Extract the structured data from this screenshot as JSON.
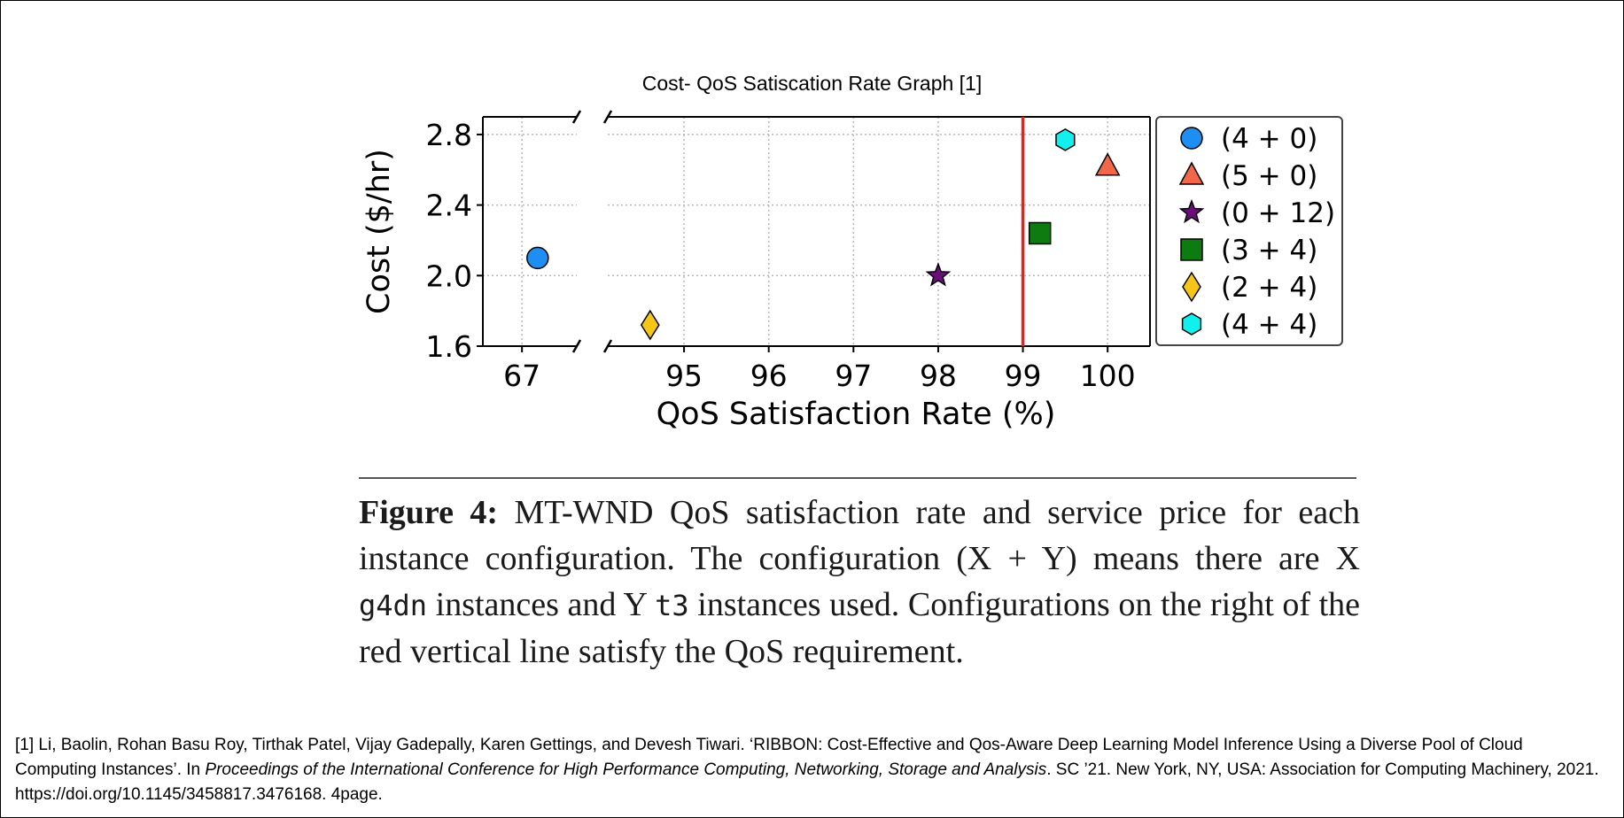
{
  "chart_data": {
    "type": "scatter",
    "title": "Cost- QoS Satiscation Rate Graph [1]",
    "xlabel": "QoS Satisfaction Rate (%)",
    "ylabel": "Cost ($/hr)",
    "x_axis_broken": true,
    "x_ticks_left_segment": [
      "67"
    ],
    "x_ticks_right_segment": [
      "95",
      "96",
      "97",
      "98",
      "99",
      "100"
    ],
    "y_ticks": [
      "1.6",
      "2.0",
      "2.4",
      "2.8"
    ],
    "xlim_left_segment": [
      66.5,
      67.7
    ],
    "xlim_right_segment": [
      94.1,
      100.5
    ],
    "ylim": [
      1.6,
      2.9
    ],
    "grid": true,
    "grid_style": "dotted",
    "reference_line": {
      "orientation": "vertical",
      "x": 99,
      "color": "#e8221b"
    },
    "legend_position": "right, outside plot",
    "series": [
      {
        "name": "(4 + 0)",
        "marker": "circle",
        "color": "#1f8ef2",
        "x": 67.2,
        "y": 2.1
      },
      {
        "name": "(5 + 0)",
        "marker": "triangle",
        "color": "#f26649",
        "x": 100.0,
        "y": 2.62
      },
      {
        "name": "(0 + 12)",
        "marker": "star",
        "color": "#6a0f7a",
        "x": 98.0,
        "y": 2.0
      },
      {
        "name": "(3 + 4)",
        "marker": "square",
        "color": "#0c7c10",
        "x": 99.2,
        "y": 2.24
      },
      {
        "name": "(2 + 4)",
        "marker": "diamond",
        "color": "#f5c518",
        "x": 94.6,
        "y": 1.72
      },
      {
        "name": "(4 + 4)",
        "marker": "hexagon",
        "color": "#12f0ee",
        "x": 99.5,
        "y": 2.77
      }
    ]
  },
  "caption": {
    "label": "Figure 4:",
    "text_1": " MT-WND QoS satisfaction rate and service price for each instance configuration. The configuration (X + Y) means there are X ",
    "code_1": "g4dn",
    "text_2": " instances and Y ",
    "code_2": "t3",
    "text_3": " instances used. Configurations on the right of the red vertical line satisfy the QoS requirement."
  },
  "reference": {
    "part_1": "[1] Li, Baolin, Rohan Basu Roy, Tirthak Patel, Vijay Gadepally, Karen Gettings, and Devesh Tiwari. ‘RIBBON: Cost-Effective and Qos-Aware Deep Learning Model Inference Using a Diverse Pool of Cloud Computing Instances’. In ",
    "venue": "Proceedings of the International Conference for High Performance Computing, Networking, Storage and Analysis",
    "part_2": ". SC ’21. New York, NY, USA: Association for Computing Machinery, 2021. https://doi.org/10.1145/3458817.3476168. 4page."
  }
}
